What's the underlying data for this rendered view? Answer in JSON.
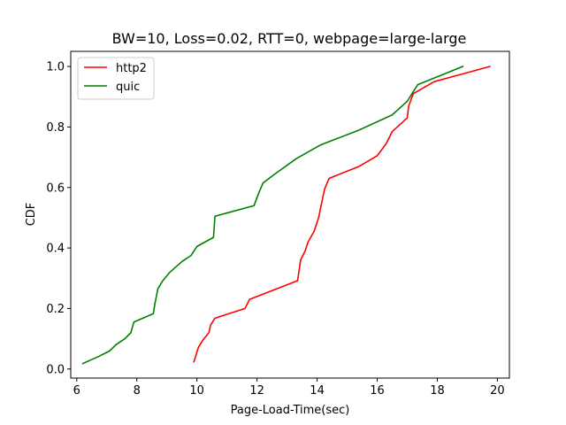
{
  "chart_data": {
    "type": "line",
    "title": "BW=10, Loss=0.02, RTT=0, webpage=large-large",
    "xlabel": "Page-Load-Time(sec)",
    "ylabel": "CDF",
    "xlim": [
      5.8,
      20.4
    ],
    "ylim": [
      -0.03,
      1.05
    ],
    "xticks": [
      6,
      8,
      10,
      12,
      14,
      16,
      18,
      20
    ],
    "yticks": [
      0.0,
      0.2,
      0.4,
      0.6,
      0.8,
      1.0
    ],
    "xtick_labels": [
      "6",
      "8",
      "10",
      "12",
      "14",
      "16",
      "18",
      "20"
    ],
    "ytick_labels": [
      "0.0",
      "0.2",
      "0.4",
      "0.6",
      "0.8",
      "1.0"
    ],
    "grid": false,
    "legend_position": "top-left",
    "series": [
      {
        "name": "http2",
        "color": "#ff0000",
        "x": [
          9.9,
          10.05,
          10.2,
          10.4,
          10.45,
          10.6,
          11.6,
          11.75,
          13.35,
          13.45,
          13.6,
          13.7,
          13.9,
          14.05,
          14.1,
          14.25,
          14.4,
          15.4,
          16.0,
          16.3,
          16.5,
          17.0,
          17.05,
          17.2,
          17.9,
          19.75
        ],
        "y": [
          0.024,
          0.072,
          0.096,
          0.12,
          0.144,
          0.168,
          0.2,
          0.23,
          0.292,
          0.36,
          0.39,
          0.42,
          0.455,
          0.5,
          0.525,
          0.595,
          0.63,
          0.67,
          0.705,
          0.745,
          0.785,
          0.83,
          0.87,
          0.91,
          0.95,
          1.0
        ]
      },
      {
        "name": "quic",
        "color": "#008000",
        "x": [
          6.2,
          6.7,
          7.1,
          7.3,
          7.6,
          7.8,
          7.9,
          8.55,
          8.6,
          8.7,
          8.85,
          9.1,
          9.5,
          9.8,
          10.0,
          10.55,
          10.6,
          11.9,
          12.05,
          12.2,
          12.6,
          13.3,
          14.1,
          15.4,
          16.5,
          17.0,
          17.35,
          18.85
        ],
        "y": [
          0.018,
          0.04,
          0.06,
          0.08,
          0.1,
          0.12,
          0.155,
          0.183,
          0.215,
          0.265,
          0.29,
          0.32,
          0.355,
          0.375,
          0.405,
          0.435,
          0.505,
          0.54,
          0.58,
          0.615,
          0.645,
          0.695,
          0.74,
          0.79,
          0.84,
          0.885,
          0.94,
          1.0
        ]
      }
    ]
  }
}
